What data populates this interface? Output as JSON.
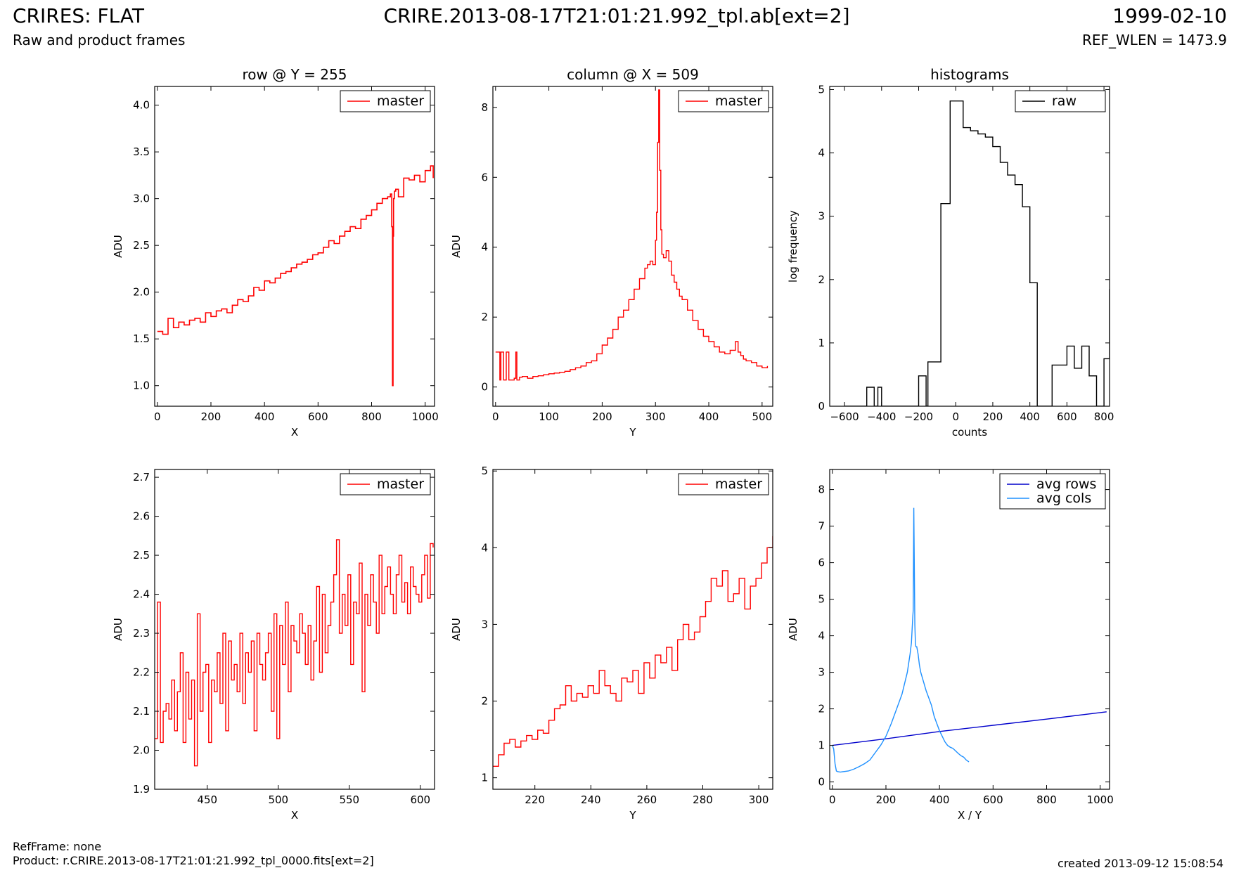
{
  "header": {
    "title": "CRIRES: FLAT",
    "subtitle": "Raw and product frames",
    "file": "CRIRE.2013-08-17T21:01:21.992_tpl.ab[ext=2]",
    "date": "1999-02-10",
    "ref_wlen": "REF_WLEN = 1473.9"
  },
  "footer": {
    "ref_frame": "RefFrame: none",
    "product": "Product: r.CRIRE.2013-08-17T21:01:21.992_tpl_0000.fits[ext=2]",
    "created": "created 2013-09-12 15:08:54"
  },
  "colors": {
    "master": "#ff0000",
    "raw": "#000000",
    "avg_rows": "#0000cc",
    "avg_cols": "#1e90ff"
  },
  "chart_data": [
    {
      "id": "row",
      "type": "line",
      "step": true,
      "title": "row @ Y = 255",
      "xlabel": "X",
      "ylabel": "ADU",
      "xlim": [
        -10,
        1035
      ],
      "ylim": [
        0.78,
        4.2
      ],
      "xticks": [
        0,
        200,
        400,
        600,
        800,
        1000
      ],
      "yticks": [
        1.0,
        1.5,
        2.0,
        2.5,
        3.0,
        3.5,
        4.0
      ],
      "ytick_decimals": 1,
      "legend": {
        "position": "top-right",
        "entries": [
          {
            "label": "master",
            "color": "#ff0000"
          }
        ]
      },
      "series": [
        {
          "name": "master",
          "color": "#ff0000",
          "x": [
            0,
            20,
            40,
            60,
            80,
            100,
            120,
            140,
            160,
            180,
            200,
            220,
            240,
            260,
            280,
            300,
            320,
            340,
            360,
            380,
            400,
            420,
            440,
            460,
            480,
            500,
            520,
            540,
            560,
            580,
            600,
            620,
            640,
            660,
            680,
            700,
            720,
            740,
            760,
            780,
            800,
            820,
            840,
            860,
            870,
            875,
            878,
            880,
            882,
            885,
            890,
            900,
            920,
            940,
            960,
            980,
            1000,
            1020,
            1030
          ],
          "y": [
            1.58,
            1.55,
            1.72,
            1.62,
            1.68,
            1.65,
            1.7,
            1.72,
            1.68,
            1.78,
            1.74,
            1.8,
            1.82,
            1.78,
            1.86,
            1.92,
            1.9,
            1.96,
            2.05,
            2.02,
            2.12,
            2.1,
            2.15,
            2.2,
            2.22,
            2.26,
            2.3,
            2.32,
            2.35,
            2.4,
            2.42,
            2.48,
            2.55,
            2.52,
            2.6,
            2.65,
            2.7,
            2.68,
            2.78,
            2.82,
            2.88,
            2.95,
            3.0,
            3.02,
            3.05,
            2.7,
            1.0,
            2.6,
            3.0,
            3.08,
            3.1,
            3.02,
            3.22,
            3.2,
            3.25,
            3.18,
            3.3,
            3.35,
            3.22
          ]
        }
      ]
    },
    {
      "id": "column",
      "type": "line",
      "step": true,
      "title": "column @ X = 509",
      "xlabel": "Y",
      "ylabel": "ADU",
      "xlim": [
        -5,
        520
      ],
      "ylim": [
        -0.55,
        8.6
      ],
      "xticks": [
        0,
        100,
        200,
        300,
        400,
        500
      ],
      "yticks": [
        0,
        2,
        4,
        6,
        8
      ],
      "ytick_decimals": 0,
      "legend": {
        "position": "top-right",
        "entries": [
          {
            "label": "master",
            "color": "#ff0000"
          }
        ]
      },
      "series": [
        {
          "name": "master",
          "color": "#ff0000",
          "x": [
            0,
            5,
            8,
            10,
            15,
            20,
            25,
            30,
            35,
            38,
            40,
            45,
            50,
            60,
            70,
            80,
            90,
            100,
            110,
            120,
            130,
            140,
            150,
            160,
            170,
            180,
            190,
            200,
            210,
            220,
            230,
            240,
            250,
            260,
            270,
            280,
            285,
            290,
            295,
            300,
            302,
            304,
            306,
            308,
            310,
            312,
            315,
            320,
            325,
            330,
            335,
            340,
            345,
            350,
            360,
            370,
            380,
            390,
            400,
            410,
            420,
            430,
            440,
            450,
            455,
            460,
            465,
            470,
            480,
            490,
            500,
            510
          ],
          "y": [
            1.0,
            1.0,
            0.2,
            1.0,
            0.2,
            1.0,
            0.2,
            0.2,
            0.25,
            1.0,
            0.2,
            0.28,
            0.3,
            0.25,
            0.3,
            0.32,
            0.35,
            0.38,
            0.4,
            0.42,
            0.45,
            0.5,
            0.55,
            0.6,
            0.7,
            0.75,
            0.95,
            1.2,
            1.4,
            1.65,
            2.0,
            2.2,
            2.5,
            2.8,
            3.1,
            3.4,
            3.5,
            3.6,
            3.5,
            4.2,
            5.0,
            7.0,
            8.5,
            6.2,
            4.5,
            3.8,
            3.7,
            3.9,
            3.6,
            3.2,
            3.0,
            2.8,
            2.6,
            2.5,
            2.2,
            1.9,
            1.65,
            1.45,
            1.3,
            1.15,
            1.0,
            0.95,
            1.05,
            1.3,
            1.0,
            0.9,
            0.8,
            0.75,
            0.7,
            0.6,
            0.55,
            0.6
          ]
        }
      ]
    },
    {
      "id": "histograms",
      "type": "line",
      "step": true,
      "title": "histograms",
      "xlabel": "counts",
      "ylabel": "log frequency",
      "xlim": [
        -680,
        830
      ],
      "ylim": [
        0,
        5.05
      ],
      "xticks": [
        -600,
        -400,
        -200,
        0,
        200,
        400,
        600,
        800
      ],
      "yticks": [
        0,
        1,
        2,
        3,
        4,
        5
      ],
      "ytick_decimals": 0,
      "legend": {
        "position": "top-right",
        "entries": [
          {
            "label": "raw",
            "color": "#000000"
          }
        ]
      },
      "series": [
        {
          "name": "raw",
          "color": "#000000",
          "x": [
            -600,
            -500,
            -480,
            -440,
            -420,
            -400,
            -220,
            -200,
            -160,
            -150,
            -80,
            -50,
            -30,
            0,
            40,
            80,
            120,
            160,
            200,
            240,
            280,
            320,
            360,
            400,
            440,
            480,
            520,
            560,
            600,
            640,
            680,
            720,
            760,
            800,
            830
          ],
          "y": [
            0,
            0,
            0.3,
            0,
            0.3,
            0,
            0,
            0.48,
            0,
            0.7,
            3.2,
            3.2,
            4.82,
            4.82,
            4.4,
            4.35,
            4.3,
            4.25,
            4.1,
            3.85,
            3.65,
            3.5,
            3.15,
            1.95,
            0,
            0,
            0.65,
            0.65,
            0.95,
            0.6,
            0.95,
            0.48,
            0,
            0.75,
            1.85
          ]
        }
      ]
    },
    {
      "id": "row_zoom",
      "type": "line",
      "step": true,
      "title": "",
      "xlabel": "X",
      "ylabel": "ADU",
      "xlim": [
        413,
        610
      ],
      "ylim": [
        1.9,
        2.72
      ],
      "xticks": [
        450,
        500,
        550,
        600
      ],
      "yticks": [
        1.9,
        2.0,
        2.1,
        2.2,
        2.3,
        2.4,
        2.5,
        2.6,
        2.7
      ],
      "ytick_decimals": 1,
      "legend": {
        "position": "top-right",
        "entries": [
          {
            "label": "master",
            "color": "#ff0000"
          }
        ]
      },
      "series": [
        {
          "name": "master",
          "color": "#ff0000",
          "x": [
            413,
            415,
            417,
            419,
            421,
            423,
            425,
            427,
            429,
            431,
            433,
            435,
            437,
            439,
            441,
            443,
            445,
            447,
            449,
            451,
            453,
            455,
            457,
            459,
            461,
            463,
            465,
            467,
            469,
            471,
            473,
            475,
            477,
            479,
            481,
            483,
            485,
            487,
            489,
            491,
            493,
            495,
            497,
            499,
            501,
            503,
            505,
            507,
            509,
            511,
            513,
            515,
            517,
            519,
            521,
            523,
            525,
            527,
            529,
            531,
            533,
            535,
            537,
            539,
            541,
            543,
            545,
            547,
            549,
            551,
            553,
            555,
            557,
            559,
            561,
            563,
            565,
            567,
            569,
            571,
            573,
            575,
            577,
            579,
            581,
            583,
            585,
            587,
            589,
            591,
            593,
            595,
            597,
            599,
            601,
            603,
            605,
            607,
            609
          ],
          "y": [
            2.03,
            2.38,
            2.02,
            2.1,
            2.12,
            2.08,
            2.18,
            2.05,
            2.15,
            2.25,
            2.02,
            2.2,
            2.08,
            2.18,
            1.96,
            2.35,
            2.1,
            2.2,
            2.22,
            2.02,
            2.18,
            2.15,
            2.25,
            2.12,
            2.3,
            2.05,
            2.28,
            2.18,
            2.22,
            2.15,
            2.3,
            2.12,
            2.25,
            2.2,
            2.28,
            2.05,
            2.3,
            2.22,
            2.18,
            2.25,
            2.3,
            2.1,
            2.35,
            2.03,
            2.32,
            2.22,
            2.38,
            2.15,
            2.32,
            2.28,
            2.25,
            2.35,
            2.3,
            2.22,
            2.32,
            2.18,
            2.28,
            2.42,
            2.2,
            2.4,
            2.25,
            2.32,
            2.38,
            2.45,
            2.54,
            2.3,
            2.4,
            2.32,
            2.45,
            2.22,
            2.38,
            2.35,
            2.48,
            2.15,
            2.4,
            2.32,
            2.45,
            2.38,
            2.3,
            2.5,
            2.35,
            2.42,
            2.47,
            2.4,
            2.35,
            2.45,
            2.5,
            2.38,
            2.43,
            2.35,
            2.47,
            2.42,
            2.4,
            2.38,
            2.45,
            2.5,
            2.39,
            2.53,
            2.52
          ]
        }
      ]
    },
    {
      "id": "column_zoom",
      "type": "line",
      "step": true,
      "title": "",
      "xlabel": "Y",
      "ylabel": "ADU",
      "xlim": [
        205,
        305
      ],
      "ylim": [
        0.85,
        5.02
      ],
      "xticks": [
        220,
        240,
        260,
        280,
        300
      ],
      "yticks": [
        1,
        2,
        3,
        4,
        5
      ],
      "ytick_decimals": 0,
      "legend": {
        "position": "top-right",
        "entries": [
          {
            "label": "master",
            "color": "#ff0000"
          }
        ]
      },
      "series": [
        {
          "name": "master",
          "color": "#ff0000",
          "x": [
            205,
            207,
            209,
            211,
            213,
            215,
            217,
            219,
            221,
            223,
            225,
            227,
            229,
            231,
            233,
            235,
            237,
            239,
            241,
            243,
            245,
            247,
            249,
            251,
            253,
            255,
            257,
            259,
            261,
            263,
            265,
            267,
            269,
            271,
            273,
            275,
            277,
            279,
            281,
            283,
            285,
            287,
            289,
            291,
            293,
            295,
            297,
            299,
            301,
            303,
            305
          ],
          "y": [
            1.15,
            1.3,
            1.45,
            1.5,
            1.4,
            1.48,
            1.55,
            1.5,
            1.62,
            1.58,
            1.75,
            1.9,
            1.95,
            2.2,
            2.0,
            2.1,
            2.05,
            2.2,
            2.1,
            2.4,
            2.2,
            2.1,
            2.0,
            2.3,
            2.25,
            2.4,
            2.1,
            2.5,
            2.3,
            2.6,
            2.5,
            2.7,
            2.4,
            2.8,
            3.0,
            2.8,
            2.9,
            3.1,
            3.3,
            3.6,
            3.5,
            3.7,
            3.3,
            3.4,
            3.6,
            3.2,
            3.5,
            3.6,
            3.8,
            4.0,
            4.15
          ]
        }
      ]
    },
    {
      "id": "averages",
      "type": "line",
      "step": false,
      "title": "",
      "xlabel": "X / Y",
      "ylabel": "ADU",
      "xlim": [
        -10,
        1035
      ],
      "ylim": [
        -0.2,
        8.55
      ],
      "xticks": [
        0,
        200,
        400,
        600,
        800,
        1000
      ],
      "yticks": [
        0,
        1,
        2,
        3,
        4,
        5,
        6,
        7,
        8
      ],
      "ytick_decimals": 0,
      "legend": {
        "position": "top-right",
        "entries": [
          {
            "label": "avg rows",
            "color": "#0000cc"
          },
          {
            "label": "avg cols",
            "color": "#1e90ff"
          }
        ]
      },
      "series": [
        {
          "name": "avg rows",
          "color": "#0000cc",
          "x": [
            0,
            200,
            400,
            600,
            800,
            1024
          ],
          "y": [
            1.0,
            1.18,
            1.38,
            1.55,
            1.72,
            1.92
          ]
        },
        {
          "name": "avg cols",
          "color": "#1e90ff",
          "x": [
            0,
            5,
            10,
            15,
            20,
            30,
            40,
            60,
            80,
            100,
            120,
            140,
            160,
            180,
            200,
            220,
            240,
            260,
            280,
            290,
            295,
            300,
            302,
            304,
            306,
            308,
            310,
            312,
            315,
            320,
            325,
            330,
            340,
            350,
            360,
            370,
            380,
            390,
            400,
            410,
            420,
            430,
            440,
            450,
            460,
            470,
            480,
            490,
            500,
            510
          ],
          "y": [
            1.0,
            0.9,
            0.5,
            0.3,
            0.28,
            0.27,
            0.28,
            0.3,
            0.35,
            0.42,
            0.5,
            0.6,
            0.8,
            1.0,
            1.25,
            1.6,
            2.0,
            2.4,
            3.0,
            3.5,
            3.8,
            4.5,
            4.7,
            7.5,
            5.8,
            4.3,
            3.8,
            3.7,
            3.7,
            3.5,
            3.2,
            3.0,
            2.75,
            2.5,
            2.3,
            2.1,
            1.8,
            1.6,
            1.4,
            1.25,
            1.1,
            1.0,
            0.95,
            0.92,
            0.85,
            0.78,
            0.72,
            0.68,
            0.6,
            0.55
          ]
        }
      ]
    }
  ]
}
